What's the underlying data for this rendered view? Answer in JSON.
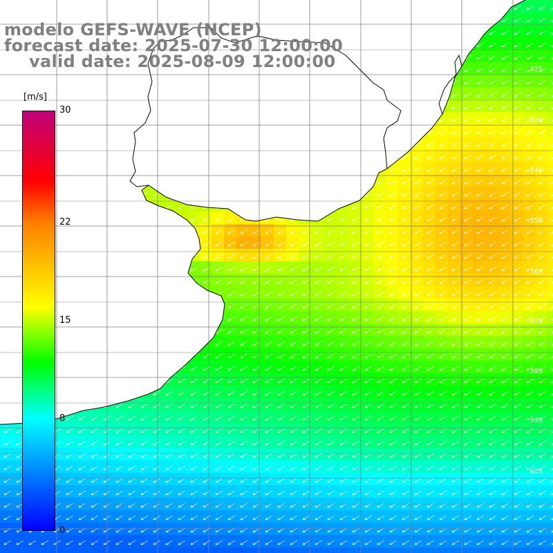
{
  "title": {
    "line1": "modelo GEFS-WAVE (NCEP)",
    "line2": "forecast date: 2025-07-30 12:00:00",
    "line3": "valid date: 2025-08-09 12:00:00"
  },
  "colorbar": {
    "unit": "[m/s]",
    "ticks": [
      "30",
      "22",
      "15",
      "8",
      "0"
    ],
    "tick_values": [
      30,
      22,
      15,
      8,
      0
    ],
    "range": [
      0,
      30
    ],
    "stops": [
      {
        "value": 0,
        "color": "#0000ff"
      },
      {
        "value": 8,
        "color": "#00ffff"
      },
      {
        "value": 12,
        "color": "#00ff00"
      },
      {
        "value": 16,
        "color": "#ffff00"
      },
      {
        "value": 22,
        "color": "#ff8000"
      },
      {
        "value": 25,
        "color": "#ff0000"
      },
      {
        "value": 30,
        "color": "#c0007a"
      }
    ]
  },
  "lat_labels": [
    "32S",
    "33S",
    "34S",
    "35S",
    "36S",
    "37S",
    "38S",
    "39S",
    "40S"
  ],
  "map": {
    "field": "wind speed",
    "wind_direction": "from north-east (arrows pointing south-west)",
    "land_color": "#ffffff",
    "coast_color": "#000000",
    "grid_color": "#808080"
  }
}
